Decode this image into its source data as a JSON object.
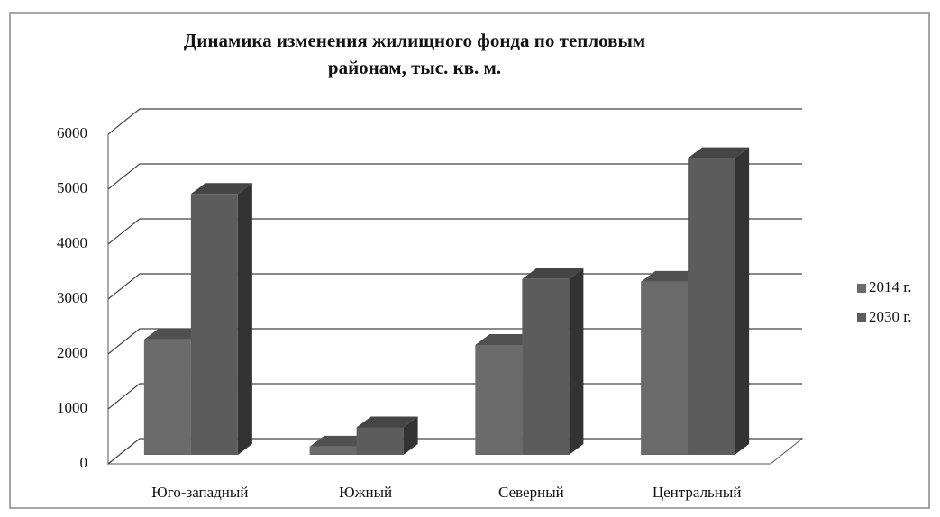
{
  "chart_data": {
    "type": "bar3d",
    "title": "Динамика изменения жилищного фонда по тепловым районам, тыс. кв. м.",
    "categories": [
      "Юго-западный",
      "Южный",
      "Северный",
      "Центральный"
    ],
    "series": [
      {
        "name": "2014 г.",
        "color": "#6b6b6b",
        "values": [
          2100,
          150,
          2000,
          3150
        ]
      },
      {
        "name": "2030 г.",
        "color": "#5c5c5c",
        "values": [
          4750,
          500,
          3200,
          5400
        ]
      }
    ],
    "ylim": [
      0,
      6000
    ],
    "yticks": [
      0,
      1000,
      2000,
      3000,
      4000,
      5000,
      6000
    ],
    "grid": true,
    "legend": "right"
  }
}
